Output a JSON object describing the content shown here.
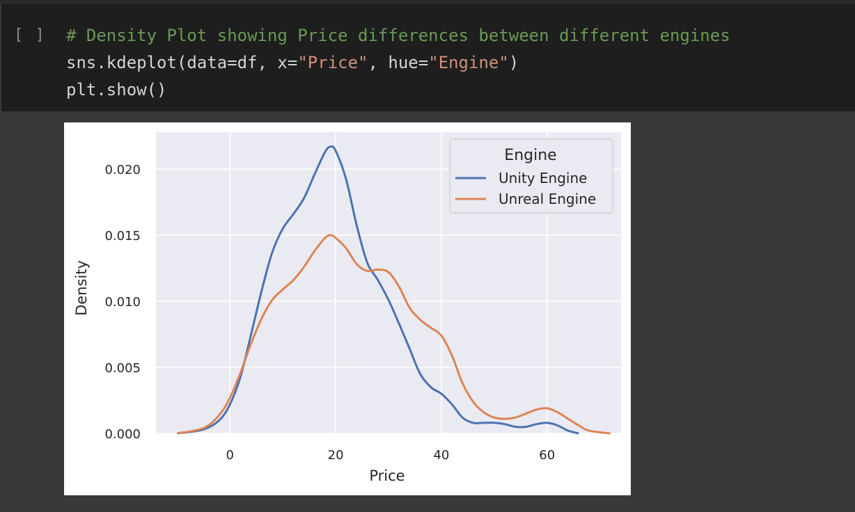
{
  "cell": {
    "run_indicator": "[ ]",
    "code": {
      "line1_comment": "# Density Plot showing Price differences between different engines",
      "line2_prefix": "sns.kdeplot(data=df, x=",
      "line2_str1": "\"Price\"",
      "line2_mid": ", hue=",
      "line2_str2": "\"Engine\"",
      "line2_suffix": ")",
      "line3": "plt.show()"
    }
  },
  "chart_data": {
    "type": "line",
    "title": "",
    "xlabel": "Price",
    "ylabel": "Density",
    "xlim": [
      -14,
      74
    ],
    "ylim": [
      0,
      0.0228
    ],
    "x_ticks": [
      0,
      20,
      40,
      60
    ],
    "y_ticks": [
      0.0,
      0.005,
      0.01,
      0.015,
      0.02
    ],
    "y_tick_labels": [
      "0.000",
      "0.005",
      "0.010",
      "0.015",
      "0.020"
    ],
    "grid": true,
    "background": "#eaeaf2",
    "legend": {
      "title": "Engine",
      "placement": "top-right"
    },
    "series": [
      {
        "name": "Unity Engine",
        "color": "#4c72b0",
        "points": [
          [
            -10,
            0.0
          ],
          [
            -5,
            0.0003
          ],
          [
            -2,
            0.001
          ],
          [
            0,
            0.0022
          ],
          [
            2,
            0.0043
          ],
          [
            4,
            0.0075
          ],
          [
            6,
            0.0108
          ],
          [
            8,
            0.0137
          ],
          [
            10,
            0.0155
          ],
          [
            12,
            0.0166
          ],
          [
            14,
            0.0178
          ],
          [
            16,
            0.0196
          ],
          [
            18,
            0.0213
          ],
          [
            19,
            0.0217
          ],
          [
            20,
            0.0214
          ],
          [
            22,
            0.0192
          ],
          [
            24,
            0.0157
          ],
          [
            26,
            0.0129
          ],
          [
            28,
            0.0116
          ],
          [
            30,
            0.0101
          ],
          [
            32,
            0.0083
          ],
          [
            34,
            0.0064
          ],
          [
            36,
            0.0045
          ],
          [
            38,
            0.0035
          ],
          [
            40,
            0.003
          ],
          [
            42,
            0.0022
          ],
          [
            44,
            0.0012
          ],
          [
            46,
            0.0008
          ],
          [
            48,
            0.0008
          ],
          [
            50,
            0.0008
          ],
          [
            52,
            0.0007
          ],
          [
            54,
            0.0005
          ],
          [
            56,
            0.0005
          ],
          [
            58,
            0.0007
          ],
          [
            60,
            0.0008
          ],
          [
            62,
            0.0006
          ],
          [
            64,
            0.0002
          ],
          [
            66,
            0.0
          ]
        ]
      },
      {
        "name": "Unreal Engine",
        "color": "#dd8452",
        "points": [
          [
            -10,
            0.0
          ],
          [
            -5,
            0.0004
          ],
          [
            -2,
            0.0014
          ],
          [
            0,
            0.0027
          ],
          [
            2,
            0.0046
          ],
          [
            4,
            0.0068
          ],
          [
            6,
            0.0087
          ],
          [
            8,
            0.0101
          ],
          [
            10,
            0.0109
          ],
          [
            12,
            0.0116
          ],
          [
            14,
            0.0126
          ],
          [
            16,
            0.0138
          ],
          [
            18,
            0.0148
          ],
          [
            19,
            0.015
          ],
          [
            20,
            0.0148
          ],
          [
            22,
            0.014
          ],
          [
            24,
            0.0128
          ],
          [
            26,
            0.0123
          ],
          [
            28,
            0.0124
          ],
          [
            30,
            0.0122
          ],
          [
            32,
            0.0111
          ],
          [
            34,
            0.0095
          ],
          [
            36,
            0.0086
          ],
          [
            38,
            0.008
          ],
          [
            40,
            0.0074
          ],
          [
            42,
            0.0059
          ],
          [
            44,
            0.0038
          ],
          [
            46,
            0.0024
          ],
          [
            48,
            0.0016
          ],
          [
            50,
            0.0012
          ],
          [
            52,
            0.0011
          ],
          [
            54,
            0.0012
          ],
          [
            56,
            0.0015
          ],
          [
            58,
            0.0018
          ],
          [
            60,
            0.0019
          ],
          [
            62,
            0.0016
          ],
          [
            64,
            0.0011
          ],
          [
            66,
            0.0006
          ],
          [
            68,
            0.0002
          ],
          [
            72,
            0.0
          ]
        ]
      }
    ]
  }
}
